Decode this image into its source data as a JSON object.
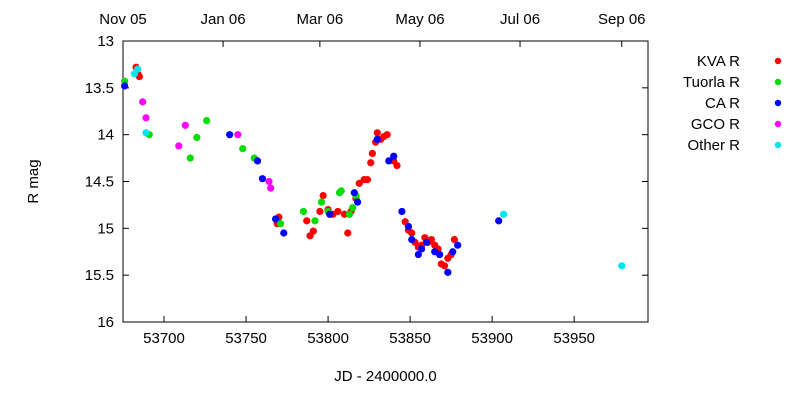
{
  "chart_data": {
    "type": "scatter",
    "title": "",
    "xlabel": "JD - 2400000.0",
    "ylabel": "R mag",
    "xlim": [
      53675,
      53995
    ],
    "ylim": [
      13,
      16
    ],
    "y_inverted": true,
    "grid": false,
    "legend_position": "right",
    "x_ticks": [
      53700,
      53750,
      53800,
      53850,
      53900,
      53950
    ],
    "y_ticks": [
      13,
      13.5,
      14,
      14.5,
      15,
      15.5,
      16
    ],
    "y_tick_labels": [
      "13",
      "13.5",
      "14",
      "14.5",
      "15",
      "15.5",
      "16"
    ],
    "top_axis": {
      "ticks": [
        {
          "label": "Nov 05",
          "x": 53675
        },
        {
          "label": "Jan 06",
          "x": 53736
        },
        {
          "label": "Mar 06",
          "x": 53795
        },
        {
          "label": "May 06",
          "x": 53856
        },
        {
          "label": "Jul 06",
          "x": 53917
        },
        {
          "label": "Sep 06",
          "x": 53979
        }
      ]
    },
    "series": [
      {
        "name": "KVA R",
        "color": "#ff0000",
        "points": [
          [
            53683,
            13.28
          ],
          [
            53684,
            13.35
          ],
          [
            53685,
            13.38
          ],
          [
            53769,
            14.95
          ],
          [
            53770,
            14.88
          ],
          [
            53787,
            14.92
          ],
          [
            53789,
            15.08
          ],
          [
            53791,
            15.03
          ],
          [
            53795,
            14.82
          ],
          [
            53797,
            14.65
          ],
          [
            53800,
            14.8
          ],
          [
            53803,
            14.85
          ],
          [
            53806,
            14.82
          ],
          [
            53810,
            14.85
          ],
          [
            53812,
            15.05
          ],
          [
            53814,
            14.82
          ],
          [
            53817,
            14.68
          ],
          [
            53819,
            14.52
          ],
          [
            53822,
            14.48
          ],
          [
            53824,
            14.48
          ],
          [
            53826,
            14.3
          ],
          [
            53827,
            14.2
          ],
          [
            53829,
            14.08
          ],
          [
            53830,
            13.98
          ],
          [
            53832,
            14.05
          ],
          [
            53834,
            14.02
          ],
          [
            53836,
            14.0
          ],
          [
            53840,
            14.28
          ],
          [
            53842,
            14.33
          ],
          [
            53847,
            14.93
          ],
          [
            53849,
            15.02
          ],
          [
            53851,
            15.05
          ],
          [
            53853,
            15.15
          ],
          [
            53855,
            15.2
          ],
          [
            53857,
            15.18
          ],
          [
            53859,
            15.1
          ],
          [
            53861,
            15.15
          ],
          [
            53863,
            15.12
          ],
          [
            53865,
            15.18
          ],
          [
            53867,
            15.22
          ],
          [
            53869,
            15.38
          ],
          [
            53871,
            15.4
          ],
          [
            53873,
            15.32
          ],
          [
            53875,
            15.28
          ],
          [
            53877,
            15.12
          ]
        ]
      },
      {
        "name": "Tuorla R",
        "color": "#00dd00",
        "points": [
          [
            53676,
            13.43
          ],
          [
            53691,
            14.0
          ],
          [
            53716,
            14.25
          ],
          [
            53720,
            14.03
          ],
          [
            53726,
            13.85
          ],
          [
            53748,
            14.15
          ],
          [
            53755,
            14.25
          ],
          [
            53771,
            14.95
          ],
          [
            53785,
            14.82
          ],
          [
            53792,
            14.92
          ],
          [
            53796,
            14.72
          ],
          [
            53800,
            14.82
          ],
          [
            53807,
            14.62
          ],
          [
            53808,
            14.6
          ],
          [
            53813,
            14.85
          ],
          [
            53815,
            14.78
          ],
          [
            53817,
            14.65
          ]
        ]
      },
      {
        "name": "CA R",
        "color": "#0000ff",
        "points": [
          [
            53676,
            13.48
          ],
          [
            53740,
            14.0
          ],
          [
            53757,
            14.28
          ],
          [
            53760,
            14.47
          ],
          [
            53768,
            14.9
          ],
          [
            53773,
            15.05
          ],
          [
            53801,
            14.85
          ],
          [
            53816,
            14.62
          ],
          [
            53818,
            14.72
          ],
          [
            53830,
            14.05
          ],
          [
            53837,
            14.28
          ],
          [
            53840,
            14.23
          ],
          [
            53845,
            14.82
          ],
          [
            53849,
            14.98
          ],
          [
            53851,
            15.12
          ],
          [
            53855,
            15.28
          ],
          [
            53857,
            15.22
          ],
          [
            53860,
            15.15
          ],
          [
            53865,
            15.25
          ],
          [
            53868,
            15.28
          ],
          [
            53873,
            15.47
          ],
          [
            53876,
            15.25
          ],
          [
            53879,
            15.18
          ],
          [
            53904,
            14.92
          ]
        ]
      },
      {
        "name": "GCO R",
        "color": "#ff00ff",
        "points": [
          [
            53687,
            13.65
          ],
          [
            53689,
            13.82
          ],
          [
            53709,
            14.12
          ],
          [
            53713,
            13.9
          ],
          [
            53745,
            14.0
          ],
          [
            53764,
            14.5
          ],
          [
            53765,
            14.57
          ]
        ]
      },
      {
        "name": "Other R",
        "color": "#00e5ee",
        "points": [
          [
            53682,
            13.35
          ],
          [
            53684,
            13.3
          ],
          [
            53689,
            13.98
          ],
          [
            53907,
            14.85
          ],
          [
            53979,
            15.4
          ]
        ]
      }
    ]
  }
}
